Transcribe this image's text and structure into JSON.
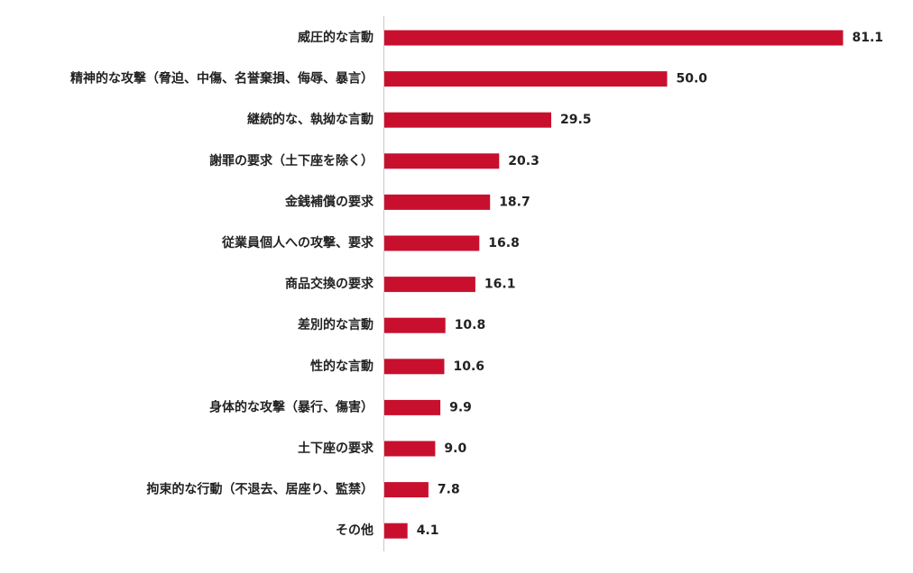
{
  "colors": {
    "bar": "#c8102e",
    "axis": "#c8c8c8",
    "text": "#222222",
    "background": "#ffffff"
  },
  "chart_data": {
    "type": "bar",
    "orientation": "horizontal",
    "title": "",
    "xlabel": "",
    "ylabel": "",
    "grid": false,
    "legend": "none",
    "xlim": [
      0,
      85
    ],
    "categories": [
      "威圧的な言動",
      "精神的な攻撃（脅迫、中傷、名誉棄損、侮辱、暴言）",
      "継続的な、執拗な言動",
      "謝罪の要求（土下座を除く）",
      "金銭補償の要求",
      "従業員個人への攻撃、要求",
      "商品交換の要求",
      "差別的な言動",
      "性的な言動",
      "身体的な攻撃（暴行、傷害）",
      "土下座の要求",
      "拘束的な行動（不退去、居座り、監禁）",
      "その他"
    ],
    "values": [
      81.1,
      50.0,
      29.5,
      20.3,
      18.7,
      16.8,
      16.1,
      10.8,
      10.6,
      9.9,
      9.0,
      7.8,
      4.1
    ],
    "value_labels": [
      "81.1",
      "50.0",
      "29.5",
      "20.3",
      "18.7",
      "16.8",
      "16.1",
      "10.8",
      "10.6",
      "9.9",
      "9.0",
      "7.8",
      "4.1"
    ]
  }
}
